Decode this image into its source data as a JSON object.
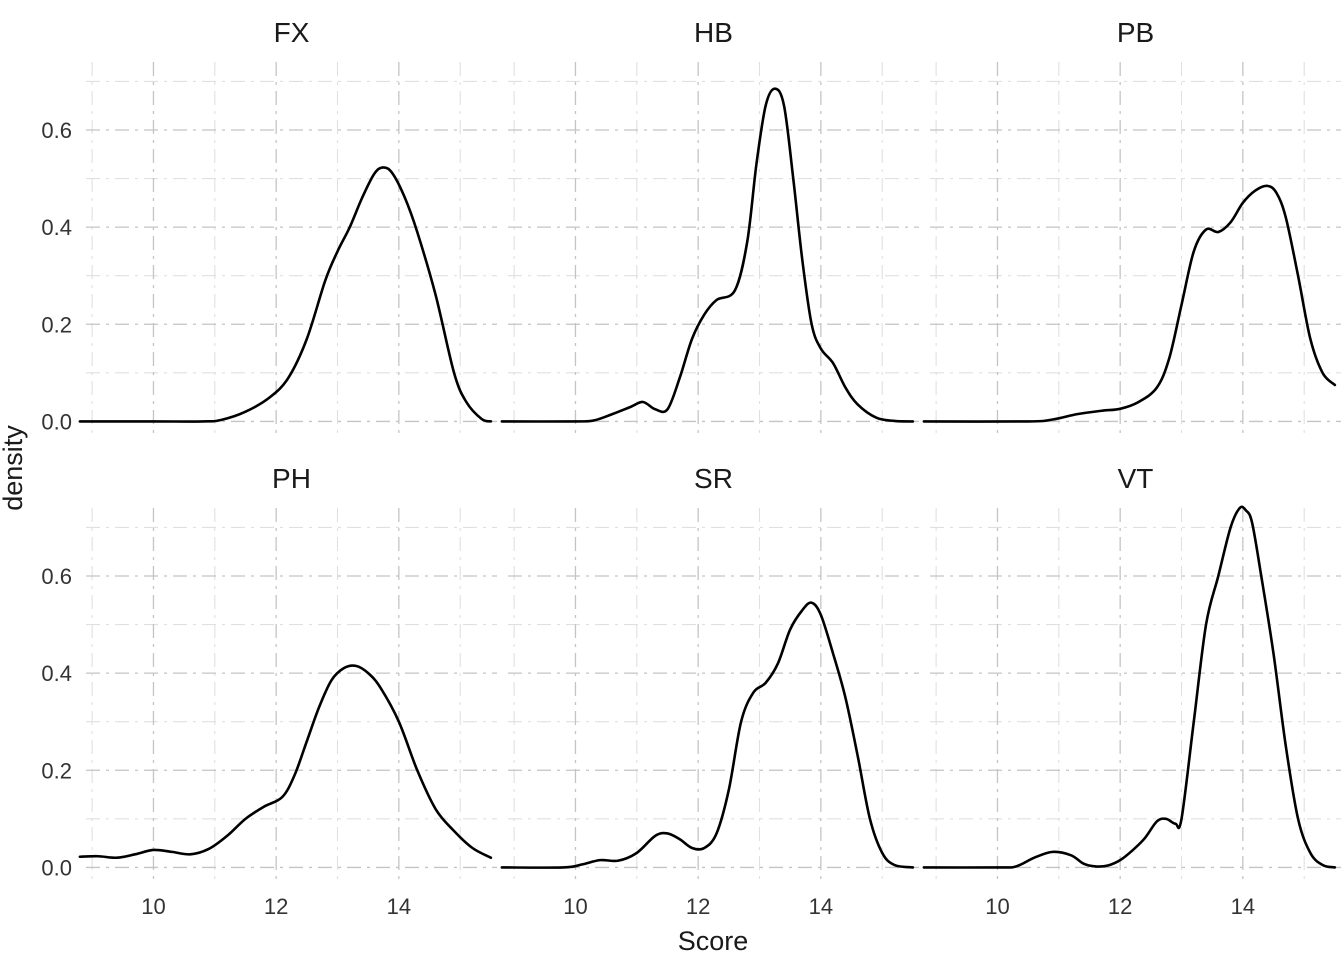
{
  "chart_data": {
    "type": "line",
    "subtype": "density-facets",
    "xlabel": "Score",
    "ylabel": "density",
    "facet_columns": 3,
    "shared_x_axis": true,
    "shared_y_axis": true,
    "xlim": [
      8.9,
      15.6
    ],
    "ylim": [
      -0.03,
      0.74
    ],
    "x_ticks": [
      10,
      12,
      14
    ],
    "x_minor_ticks": [
      9,
      11,
      13,
      15
    ],
    "y_ticks": [
      0.0,
      0.2,
      0.4,
      0.6
    ],
    "y_tick_labels": [
      "0.0",
      "0.2",
      "0.4",
      "0.6"
    ],
    "y_minor_ticks": [
      0.1,
      0.3,
      0.5,
      0.7
    ],
    "grid": true,
    "line_color": "#000000",
    "panels": [
      {
        "name": "FX",
        "x": [
          8.8,
          10.0,
          10.8,
          11.1,
          11.5,
          11.9,
          12.2,
          12.5,
          12.8,
          13.0,
          13.2,
          13.4,
          13.6,
          13.75,
          13.9,
          14.1,
          14.3,
          14.6,
          14.9,
          15.1,
          15.35,
          15.5
        ],
        "y": [
          0.0,
          0.0,
          0.0,
          0.003,
          0.02,
          0.05,
          0.09,
          0.17,
          0.29,
          0.35,
          0.4,
          0.46,
          0.51,
          0.523,
          0.51,
          0.46,
          0.39,
          0.26,
          0.1,
          0.04,
          0.005,
          0.0
        ]
      },
      {
        "name": "HB",
        "x": [
          8.8,
          10.0,
          10.3,
          10.6,
          10.9,
          11.1,
          11.3,
          11.5,
          11.7,
          11.9,
          12.1,
          12.3,
          12.6,
          12.8,
          12.95,
          13.1,
          13.25,
          13.4,
          13.55,
          13.7,
          13.85,
          14.0,
          14.2,
          14.4,
          14.6,
          14.9,
          15.2,
          15.5
        ],
        "y": [
          0.0,
          0.0,
          0.002,
          0.015,
          0.03,
          0.04,
          0.025,
          0.025,
          0.09,
          0.17,
          0.22,
          0.25,
          0.27,
          0.37,
          0.53,
          0.65,
          0.685,
          0.65,
          0.5,
          0.33,
          0.2,
          0.15,
          0.12,
          0.07,
          0.035,
          0.008,
          0.001,
          0.0
        ]
      },
      {
        "name": "PB",
        "x": [
          8.8,
          10.5,
          10.9,
          11.3,
          11.7,
          12.0,
          12.3,
          12.6,
          12.8,
          13.0,
          13.2,
          13.4,
          13.6,
          13.8,
          14.0,
          14.2,
          14.4,
          14.55,
          14.7,
          14.9,
          15.1,
          15.3,
          15.5
        ],
        "y": [
          0.0,
          0.0,
          0.004,
          0.015,
          0.022,
          0.026,
          0.04,
          0.07,
          0.13,
          0.24,
          0.35,
          0.395,
          0.39,
          0.41,
          0.45,
          0.475,
          0.485,
          0.47,
          0.42,
          0.3,
          0.17,
          0.1,
          0.075
        ]
      },
      {
        "name": "PH",
        "x": [
          8.8,
          9.1,
          9.4,
          9.7,
          10.0,
          10.3,
          10.6,
          10.9,
          11.2,
          11.5,
          11.8,
          12.1,
          12.3,
          12.5,
          12.7,
          12.9,
          13.1,
          13.3,
          13.5,
          13.7,
          14.0,
          14.3,
          14.6,
          14.9,
          15.2,
          15.5
        ],
        "y": [
          0.022,
          0.023,
          0.02,
          0.027,
          0.036,
          0.032,
          0.027,
          0.038,
          0.065,
          0.1,
          0.125,
          0.145,
          0.19,
          0.26,
          0.33,
          0.385,
          0.41,
          0.415,
          0.4,
          0.37,
          0.3,
          0.2,
          0.12,
          0.075,
          0.04,
          0.02
        ]
      },
      {
        "name": "SR",
        "x": [
          8.8,
          9.8,
          10.1,
          10.4,
          10.7,
          11.0,
          11.3,
          11.5,
          11.7,
          11.9,
          12.1,
          12.3,
          12.5,
          12.7,
          12.9,
          13.1,
          13.3,
          13.5,
          13.7,
          13.85,
          14.0,
          14.2,
          14.4,
          14.6,
          14.8,
          15.0,
          15.2,
          15.5
        ],
        "y": [
          0.0,
          0.0,
          0.006,
          0.015,
          0.014,
          0.03,
          0.065,
          0.07,
          0.058,
          0.04,
          0.04,
          0.07,
          0.16,
          0.3,
          0.36,
          0.38,
          0.42,
          0.49,
          0.53,
          0.545,
          0.52,
          0.44,
          0.35,
          0.23,
          0.1,
          0.03,
          0.005,
          0.0
        ]
      },
      {
        "name": "VT",
        "x": [
          8.8,
          10.0,
          10.3,
          10.6,
          10.9,
          11.2,
          11.4,
          11.6,
          11.8,
          12.0,
          12.2,
          12.4,
          12.6,
          12.75,
          12.9,
          13.0,
          13.2,
          13.4,
          13.6,
          13.8,
          13.95,
          14.05,
          14.15,
          14.3,
          14.5,
          14.7,
          14.9,
          15.1,
          15.3,
          15.5
        ],
        "y": [
          0.0,
          0.0,
          0.002,
          0.02,
          0.032,
          0.025,
          0.008,
          0.002,
          0.004,
          0.015,
          0.035,
          0.06,
          0.095,
          0.1,
          0.09,
          0.1,
          0.3,
          0.5,
          0.6,
          0.7,
          0.74,
          0.735,
          0.71,
          0.6,
          0.44,
          0.25,
          0.1,
          0.03,
          0.005,
          0.0
        ]
      }
    ]
  }
}
